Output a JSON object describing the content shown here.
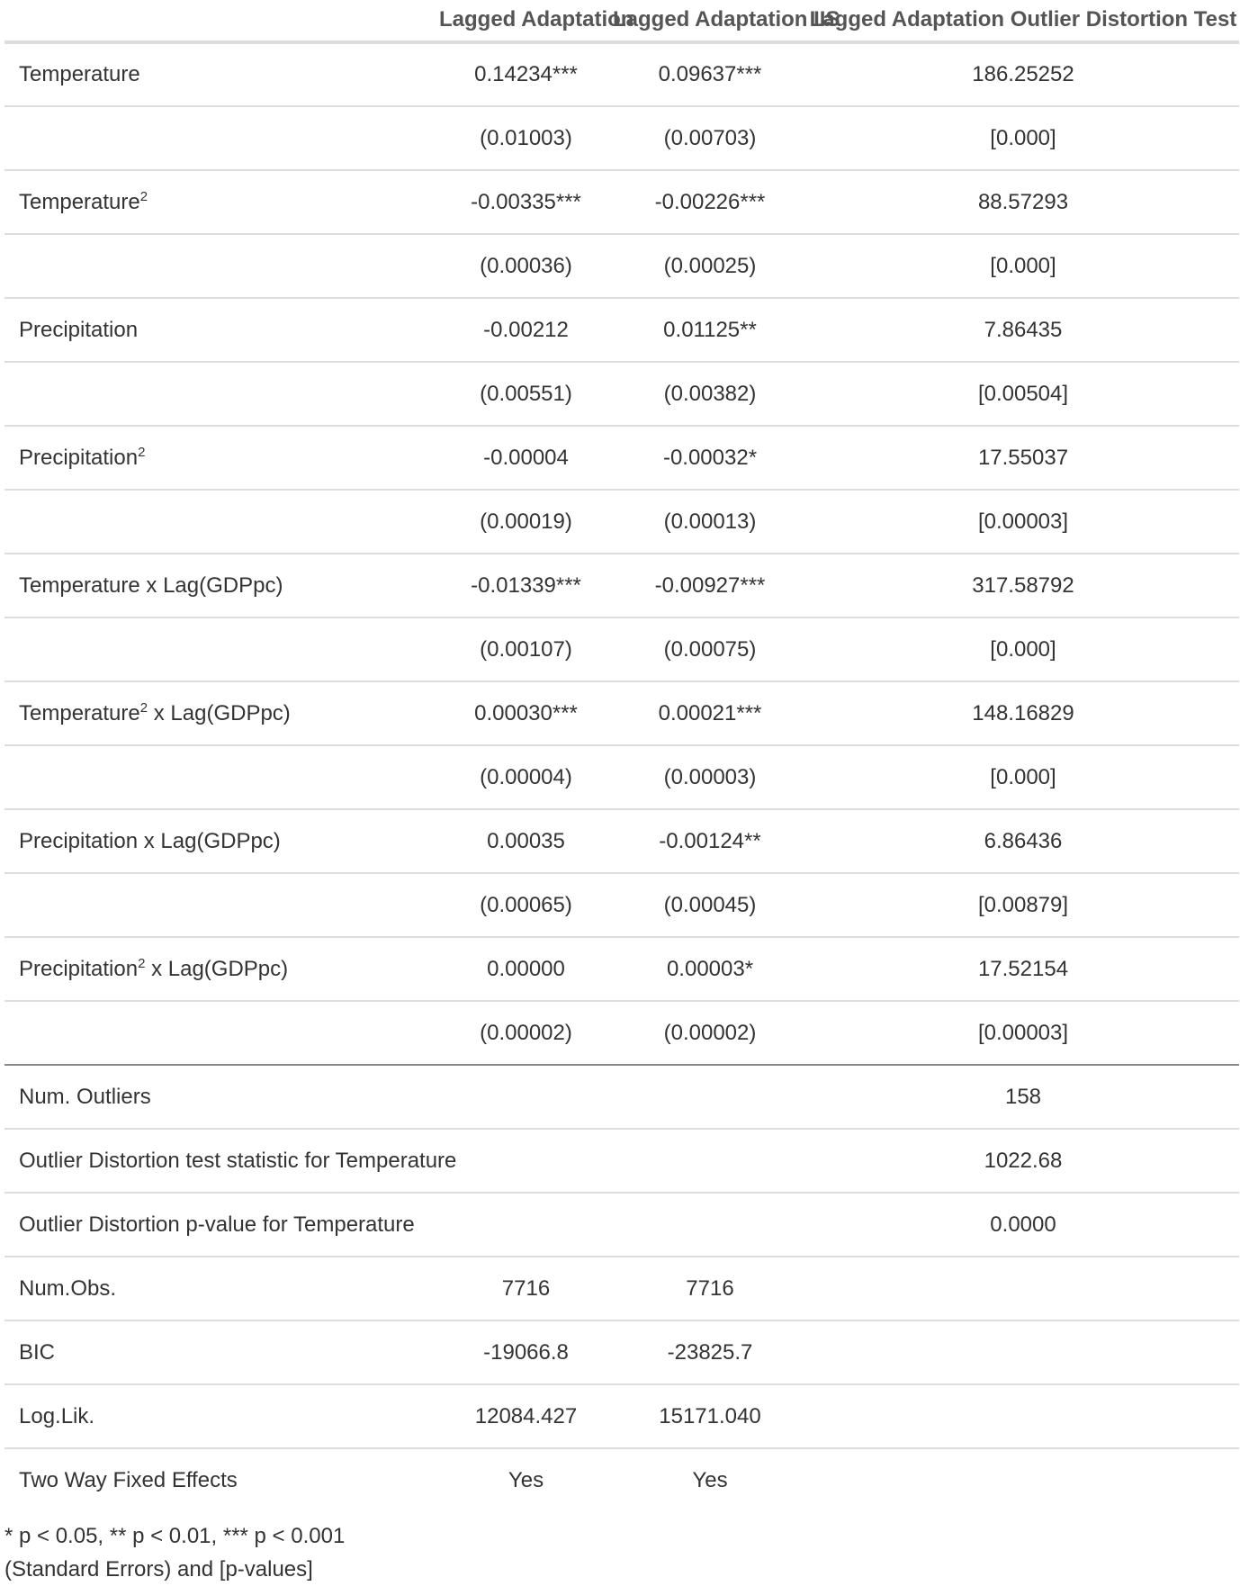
{
  "table": {
    "headers": [
      "",
      "Lagged Adaptation",
      "Lagged Adaptation IIS",
      "Lagged Adaptation Outlier Distortion Test"
    ],
    "rows": [
      {
        "label": "Temperature",
        "sup": "",
        "suffix": "",
        "values": [
          "0.14234***",
          "0.09637***",
          "186.25252"
        ],
        "kind": "coef"
      },
      {
        "label": "",
        "sup": "",
        "suffix": "",
        "values": [
          "(0.01003)",
          "(0.00703)",
          "[0.000]"
        ],
        "kind": "se"
      },
      {
        "label": "Temperature",
        "sup": "2",
        "suffix": "",
        "values": [
          "-0.00335***",
          "-0.00226***",
          "88.57293"
        ],
        "kind": "coef"
      },
      {
        "label": "",
        "sup": "",
        "suffix": "",
        "values": [
          "(0.00036)",
          "(0.00025)",
          "[0.000]"
        ],
        "kind": "se"
      },
      {
        "label": "Precipitation",
        "sup": "",
        "suffix": "",
        "values": [
          "-0.00212",
          "0.01125**",
          "7.86435"
        ],
        "kind": "coef"
      },
      {
        "label": "",
        "sup": "",
        "suffix": "",
        "values": [
          "(0.00551)",
          "(0.00382)",
          "[0.00504]"
        ],
        "kind": "se"
      },
      {
        "label": "Precipitation",
        "sup": "2",
        "suffix": "",
        "values": [
          "-0.00004",
          "-0.00032*",
          "17.55037"
        ],
        "kind": "coef"
      },
      {
        "label": "",
        "sup": "",
        "suffix": "",
        "values": [
          "(0.00019)",
          "(0.00013)",
          "[0.00003]"
        ],
        "kind": "se"
      },
      {
        "label": "Temperature x Lag(GDPpc)",
        "sup": "",
        "suffix": "",
        "values": [
          "-0.01339***",
          "-0.00927***",
          "317.58792"
        ],
        "kind": "coef"
      },
      {
        "label": "",
        "sup": "",
        "suffix": "",
        "values": [
          "(0.00107)",
          "(0.00075)",
          "[0.000]"
        ],
        "kind": "se"
      },
      {
        "label": "Temperature",
        "sup": "2",
        "suffix": " x Lag(GDPpc)",
        "values": [
          "0.00030***",
          "0.00021***",
          "148.16829"
        ],
        "kind": "coef"
      },
      {
        "label": "",
        "sup": "",
        "suffix": "",
        "values": [
          "(0.00004)",
          "(0.00003)",
          "[0.000]"
        ],
        "kind": "se"
      },
      {
        "label": "Precipitation x Lag(GDPpc)",
        "sup": "",
        "suffix": "",
        "values": [
          "0.00035",
          "-0.00124**",
          "6.86436"
        ],
        "kind": "coef"
      },
      {
        "label": "",
        "sup": "",
        "suffix": "",
        "values": [
          "(0.00065)",
          "(0.00045)",
          "[0.00879]"
        ],
        "kind": "se"
      },
      {
        "label": "Precipitation",
        "sup": "2",
        "suffix": " x Lag(GDPpc)",
        "values": [
          "0.00000",
          "0.00003*",
          "17.52154"
        ],
        "kind": "coef"
      },
      {
        "label": "",
        "sup": "",
        "suffix": "",
        "values": [
          "(0.00002)",
          "(0.00002)",
          "[0.00003]"
        ],
        "kind": "se"
      },
      {
        "label": "Num. Outliers",
        "sup": "",
        "suffix": "",
        "values": [
          "",
          "",
          "158"
        ],
        "kind": "gof"
      },
      {
        "label": "Outlier Distortion test statistic for Temperature",
        "sup": "",
        "suffix": "",
        "values": [
          "",
          "",
          "1022.68"
        ],
        "kind": "gof"
      },
      {
        "label": "Outlier Distortion p-value for Temperature",
        "sup": "",
        "suffix": "",
        "values": [
          "",
          "",
          "0.0000"
        ],
        "kind": "gof"
      },
      {
        "label": "Num.Obs.",
        "sup": "",
        "suffix": "",
        "values": [
          "7716",
          "7716",
          ""
        ],
        "kind": "gof"
      },
      {
        "label": "BIC",
        "sup": "",
        "suffix": "",
        "values": [
          "-19066.8",
          "-23825.7",
          ""
        ],
        "kind": "gof"
      },
      {
        "label": "Log.Lik.",
        "sup": "",
        "suffix": "",
        "values": [
          "12084.427",
          "15171.040",
          ""
        ],
        "kind": "gof"
      },
      {
        "label": "Two Way Fixed Effects",
        "sup": "",
        "suffix": "",
        "values": [
          "Yes",
          "Yes",
          ""
        ],
        "kind": "gof"
      }
    ]
  },
  "notes": [
    "* p < 0.05, ** p < 0.01, *** p < 0.001",
    "(Standard Errors) and [p-values]"
  ]
}
